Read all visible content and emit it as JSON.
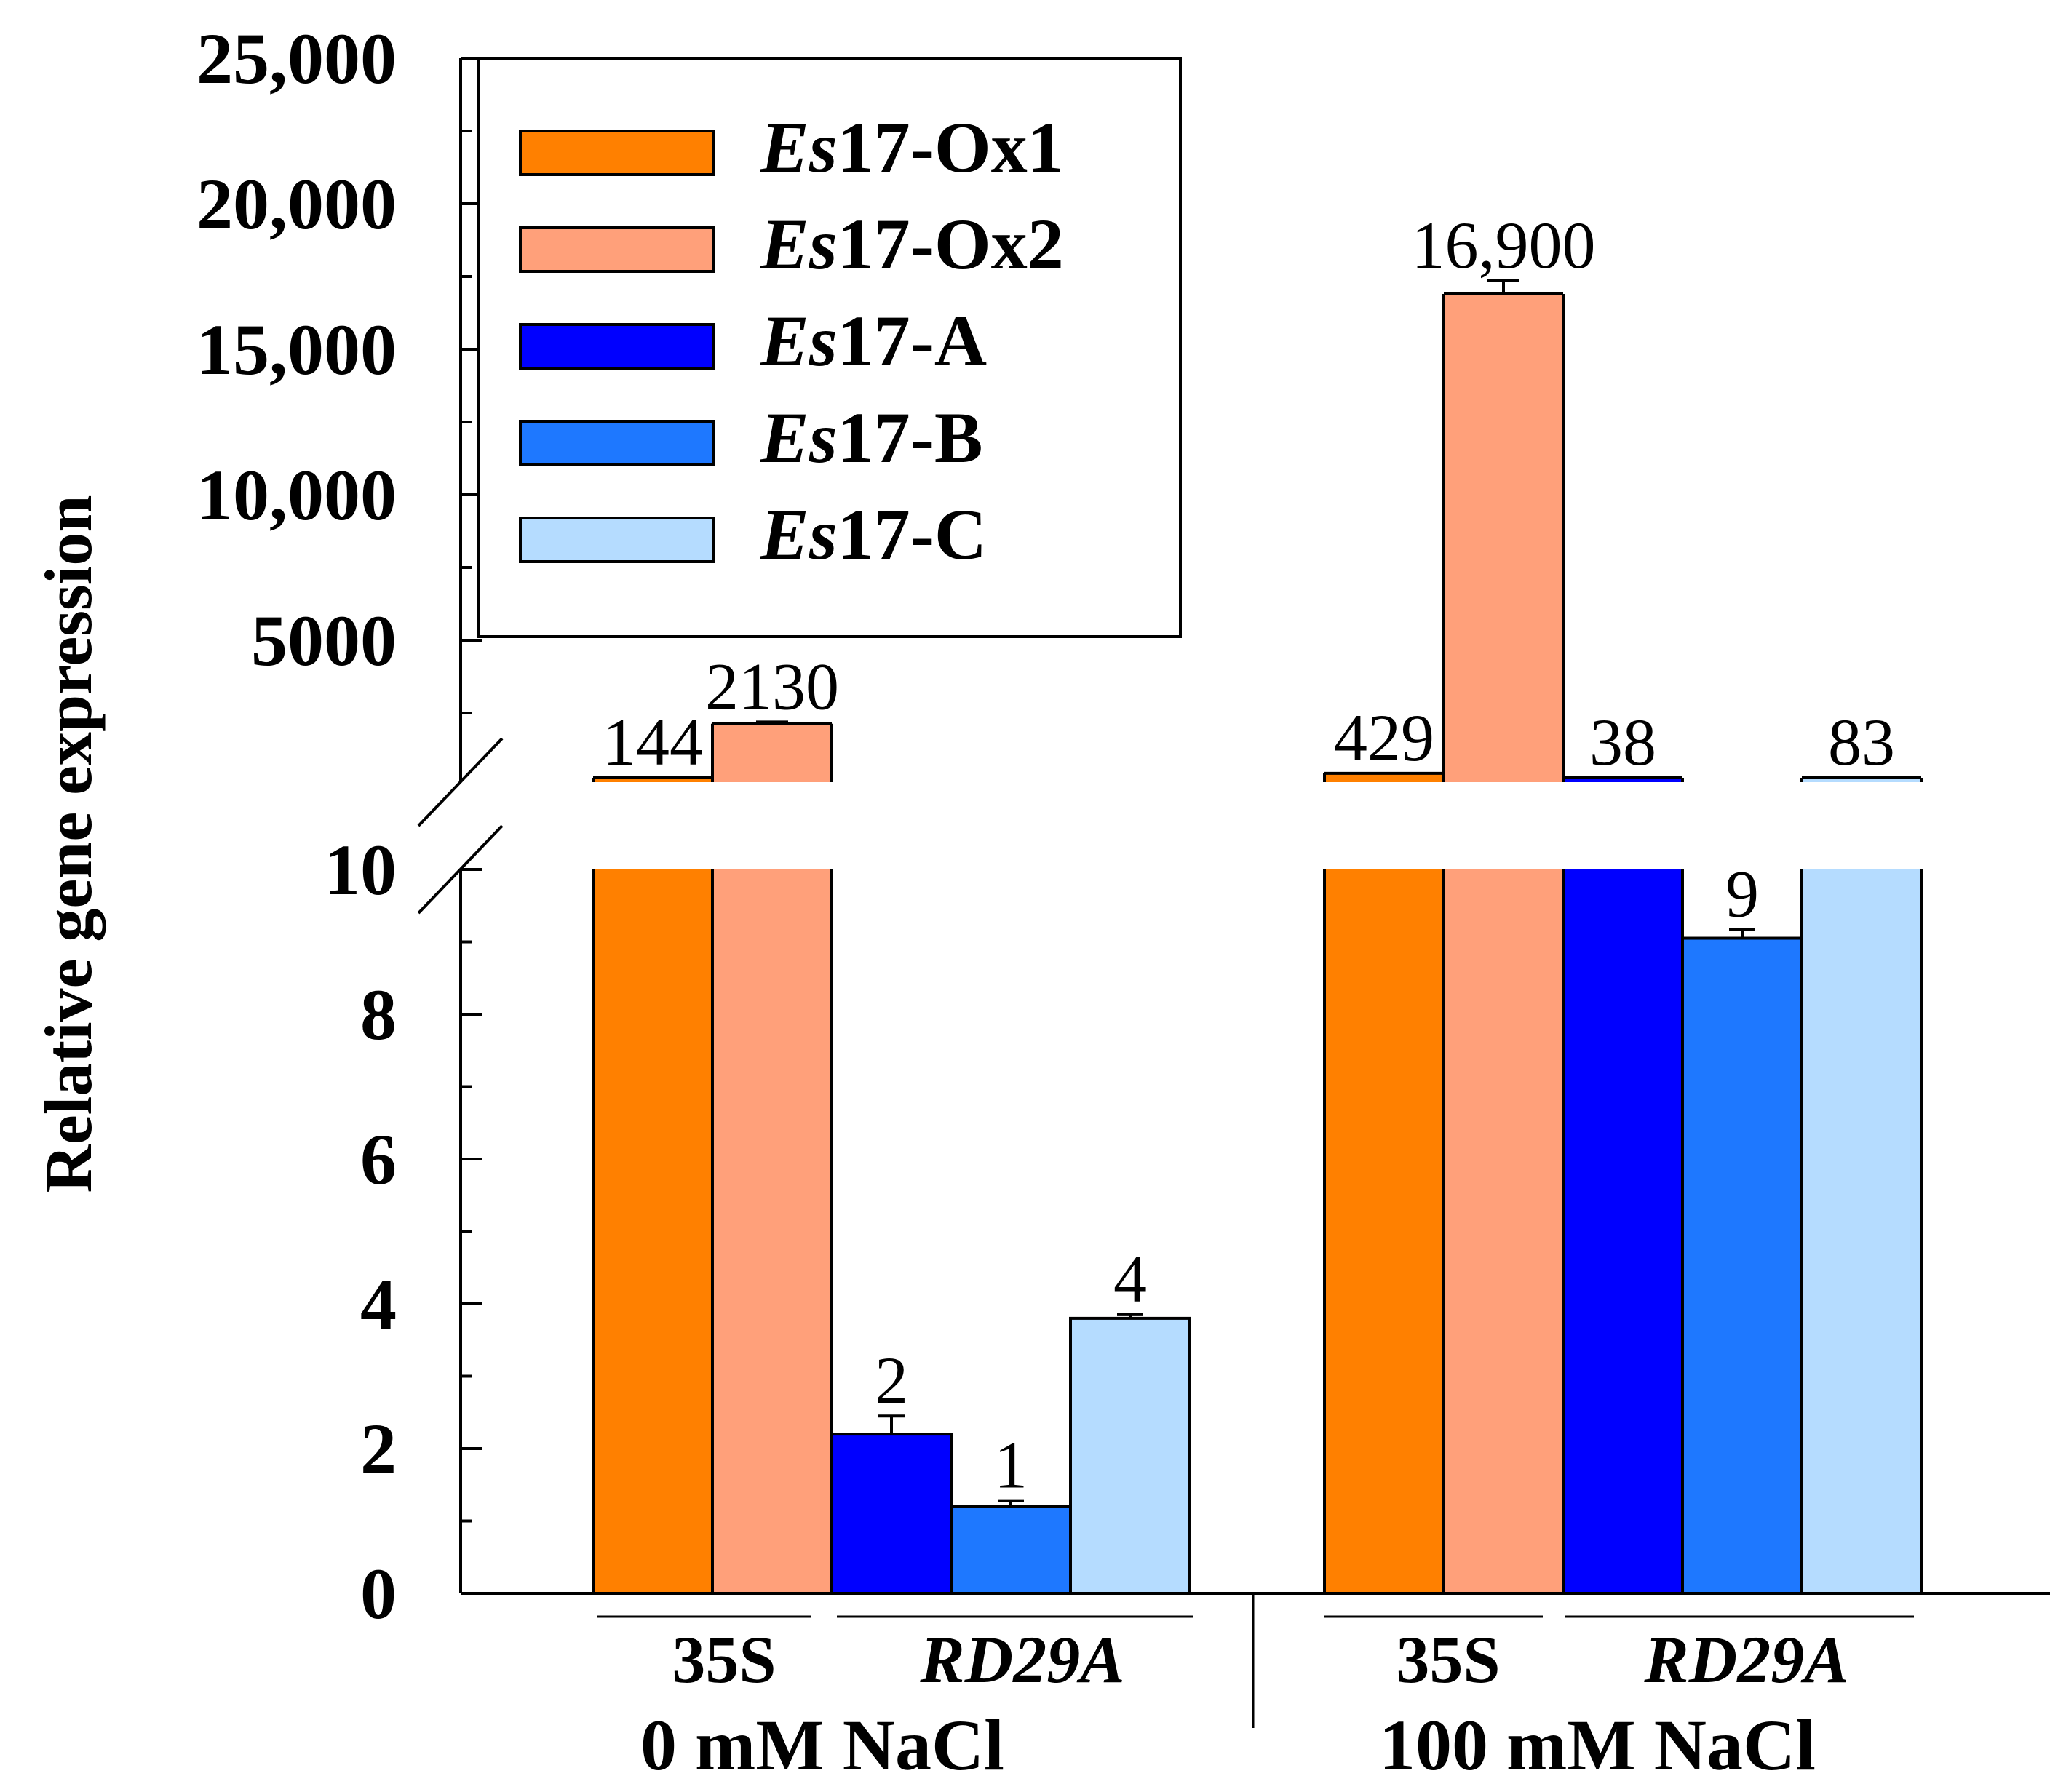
{
  "chart_data": {
    "type": "bar",
    "ylabel": "Relative gene expression",
    "y_break": true,
    "y_ranges": {
      "lower": [
        0,
        10
      ],
      "upper": [
        0,
        25000
      ]
    },
    "y_ticks_lower": [
      "0",
      "2",
      "4",
      "6",
      "8",
      "10"
    ],
    "y_ticks_upper": [
      "5000",
      "10,000",
      "15,000",
      "20,000",
      "25,000"
    ],
    "legend": {
      "position": "top-left",
      "entries": [
        {
          "prefix": "Es",
          "suffix": "17-Ox1",
          "color": "#FF8000"
        },
        {
          "prefix": "Es",
          "suffix": "17-Ox2",
          "color": "#FFA07A"
        },
        {
          "prefix": "Es",
          "suffix": "17-A",
          "color": "#0000FF"
        },
        {
          "prefix": "Es",
          "suffix": "17-B",
          "color": "#1E78FF"
        },
        {
          "prefix": "Es",
          "suffix": "17-C",
          "color": "#B5DCFF"
        }
      ]
    },
    "conditions": [
      {
        "name": "0 mM NaCl",
        "promoters": [
          {
            "name": "35S",
            "italic": false
          },
          {
            "name": "RD29A",
            "italic": true
          }
        ],
        "bars": [
          {
            "series": "Es17-Ox1",
            "value": 144,
            "error": 0,
            "label": "144"
          },
          {
            "series": "Es17-Ox2",
            "value": 2130,
            "error": 60,
            "label": "2130"
          },
          {
            "series": "Es17-A",
            "value": 2.2,
            "error": 0.25,
            "label": "2"
          },
          {
            "series": "Es17-B",
            "value": 1.2,
            "error": 0.08,
            "label": "1"
          },
          {
            "series": "Es17-C",
            "value": 3.8,
            "error": 0.05,
            "label": "4"
          }
        ]
      },
      {
        "name": "100 mM NaCl",
        "promoters": [
          {
            "name": "35S",
            "italic": false
          },
          {
            "name": "RD29A",
            "italic": true
          }
        ],
        "bars": [
          {
            "series": "Es17-Ox1",
            "value": 429,
            "error": 0,
            "label": "429"
          },
          {
            "series": "Es17-Ox2",
            "value": 16900,
            "error": 450,
            "label": "16,900"
          },
          {
            "series": "Es17-A",
            "value": 38,
            "error": 0,
            "label": "38"
          },
          {
            "series": "Es17-B",
            "value": 9.05,
            "error": 0.12,
            "label": "9"
          },
          {
            "series": "Es17-C",
            "value": 83,
            "error": 0,
            "label": "83"
          }
        ]
      }
    ]
  }
}
